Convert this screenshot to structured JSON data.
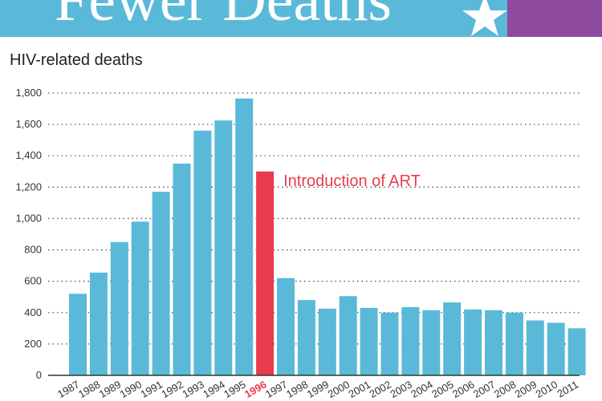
{
  "banner": {
    "title": "Fewer Deaths",
    "star_icon": "star-icon",
    "colors": {
      "banner": "#5ab9d8",
      "accent": "#8e4a9e",
      "text": "#ffffff"
    }
  },
  "chart_data": {
    "type": "bar",
    "title": "HIV-related deaths",
    "xlabel": "",
    "ylabel": "",
    "ylim": [
      0,
      1800
    ],
    "yticks": [
      0,
      200,
      400,
      600,
      800,
      1000,
      1200,
      1400,
      1600,
      1800
    ],
    "ytick_labels": [
      "0",
      "200",
      "400",
      "600",
      "800",
      "1,000",
      "1,200",
      "1,400",
      "1,600",
      "1,800"
    ],
    "grid": true,
    "categories": [
      "1987",
      "1988",
      "1989",
      "1990",
      "1991",
      "1992",
      "1993",
      "1994",
      "1995",
      "1996",
      "1997",
      "1998",
      "1999",
      "2000",
      "2001",
      "2002",
      "2003",
      "2004",
      "2005",
      "2006",
      "2007",
      "2008",
      "2009",
      "2010",
      "2011"
    ],
    "values": [
      520,
      655,
      850,
      980,
      1170,
      1350,
      1560,
      1625,
      1765,
      1300,
      620,
      480,
      425,
      505,
      430,
      400,
      435,
      415,
      465,
      420,
      415,
      400,
      350,
      335,
      300
    ],
    "highlight_index": 9,
    "annotation": {
      "text": "Introduction of ART"
    },
    "colors": {
      "bar": "#5ab9d8",
      "highlight": "#e93b4e",
      "grid": "#555555",
      "axis": "#333333",
      "tick_text": "#333333"
    }
  }
}
